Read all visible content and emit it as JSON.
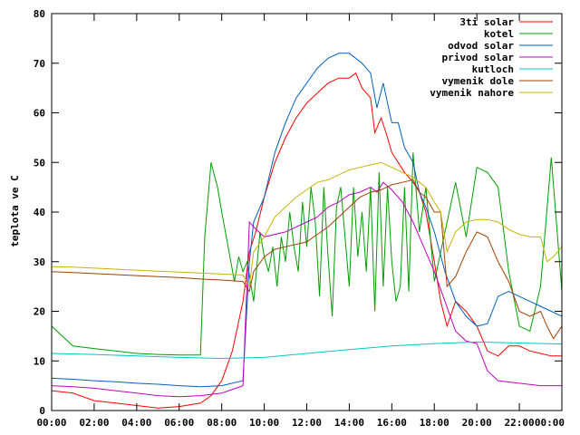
{
  "chart_data": {
    "type": "line",
    "title": "",
    "xlabel": "",
    "ylabel": "teplota ve C",
    "xlim": [
      0,
      24
    ],
    "ylim": [
      0,
      80
    ],
    "x_ticks": [
      0,
      2,
      4,
      6,
      8,
      10,
      12,
      14,
      16,
      18,
      20,
      22,
      24
    ],
    "x_tick_labels": [
      "00:00",
      "02:00",
      "04:00",
      "06:00",
      "08:00",
      "10:00",
      "12:00",
      "14:00",
      "16:00",
      "18:00",
      "20:00",
      "22:00",
      "00:00"
    ],
    "y_ticks": [
      0,
      10,
      20,
      30,
      40,
      50,
      60,
      70,
      80
    ],
    "y_tick_labels": [
      "0",
      "10",
      "20",
      "30",
      "40",
      "50",
      "60",
      "70",
      "80"
    ],
    "grid": false,
    "legend_position": "top-right",
    "series": [
      {
        "name": "3ti solar",
        "color": "#ff0000",
        "x": [
          0,
          1,
          2,
          3,
          4,
          5,
          6,
          7,
          7.5,
          8,
          8.5,
          9,
          9.3,
          9.6,
          10,
          10.5,
          11,
          11.5,
          12,
          12.5,
          13,
          13.5,
          14,
          14.3,
          14.6,
          15,
          15.2,
          15.5,
          15.8,
          16,
          16.3,
          16.6,
          17,
          17.3,
          17.6,
          18,
          18.3,
          18.6,
          19,
          19.5,
          20,
          20.5,
          21,
          21.5,
          22,
          22.5,
          23,
          23.5,
          24
        ],
        "y": [
          4,
          3.5,
          2,
          1.5,
          1,
          0.5,
          0.8,
          1.5,
          3,
          6,
          12,
          22,
          32,
          36,
          43,
          50,
          55,
          59,
          62,
          64,
          66,
          67,
          67,
          68,
          65,
          63,
          56,
          59,
          55,
          52,
          50,
          48,
          46,
          44,
          40,
          30,
          22,
          17,
          22,
          20,
          17,
          12,
          11,
          13,
          13,
          12,
          11.5,
          11,
          11
        ]
      },
      {
        "name": "kotel",
        "color": "#00a000",
        "x": [
          0,
          0.5,
          1,
          2,
          3,
          4,
          5,
          6,
          7,
          7.2,
          7.5,
          7.8,
          8,
          8.3,
          8.6,
          8.8,
          9,
          9.2,
          9.5,
          9.8,
          10,
          10.2,
          10.4,
          10.6,
          10.8,
          11,
          11.2,
          11.4,
          11.6,
          11.8,
          12,
          12.2,
          12.4,
          12.6,
          12.8,
          13,
          13.2,
          13.4,
          13.6,
          13.8,
          14,
          14.2,
          14.4,
          14.6,
          14.8,
          15,
          15.2,
          15.4,
          15.6,
          15.8,
          16,
          16.2,
          16.4,
          16.6,
          16.8,
          17,
          17.3,
          17.6,
          18,
          18.5,
          19,
          19.5,
          20,
          20.5,
          21,
          21.5,
          22,
          22.5,
          23,
          23.5,
          24
        ],
        "y": [
          17,
          15,
          13,
          12.5,
          12,
          11.5,
          11.3,
          11.2,
          11.2,
          35,
          50,
          45,
          40,
          33,
          26,
          31,
          28,
          30,
          22,
          36,
          31,
          28,
          33,
          25,
          35,
          30,
          40,
          33,
          28,
          42,
          33,
          45,
          38,
          23,
          45,
          31,
          19,
          41,
          45,
          35,
          25,
          45,
          31,
          40,
          28,
          45,
          20,
          48,
          25,
          45,
          30,
          22,
          25,
          45,
          24,
          52,
          36,
          45,
          26,
          36,
          46,
          35,
          49,
          48,
          45,
          28,
          17,
          16,
          25,
          51,
          24
        ]
      },
      {
        "name": "odvod solar",
        "color": "#0060c0",
        "x": [
          0,
          1,
          2,
          3,
          4,
          5,
          6,
          7,
          8,
          9,
          9.3,
          9.5,
          10,
          10.5,
          11,
          11.5,
          12,
          12.5,
          13,
          13.5,
          14,
          14.3,
          14.6,
          15,
          15.3,
          15.6,
          16,
          16.3,
          16.6,
          17,
          17.3,
          17.6,
          18,
          18.5,
          19,
          19.5,
          20,
          20.5,
          21,
          21.5,
          22,
          22.5,
          23,
          23.5,
          24
        ],
        "y": [
          6.5,
          6.3,
          6,
          5.8,
          5.5,
          5.3,
          5,
          4.8,
          5,
          6,
          30,
          38,
          43,
          52,
          58,
          63,
          66,
          69,
          71,
          72,
          72,
          71,
          70,
          68,
          61,
          66,
          58,
          58,
          53,
          50,
          44,
          41,
          36,
          28,
          22,
          19,
          17,
          17.5,
          23,
          24,
          23,
          22,
          21,
          20,
          19
        ]
      },
      {
        "name": "privod solar",
        "color": "#c000c0",
        "x": [
          0,
          1,
          2,
          3,
          4,
          5,
          6,
          7,
          8,
          9,
          9.3,
          9.5,
          10,
          10.5,
          11,
          11.5,
          12,
          12.5,
          13,
          13.5,
          14,
          14.5,
          15,
          15.3,
          15.6,
          16,
          16.5,
          17,
          17.5,
          18,
          18.5,
          19,
          19.5,
          20,
          20.5,
          21,
          22,
          23,
          24
        ],
        "y": [
          5,
          4.8,
          4.5,
          4,
          3.5,
          3,
          2.8,
          3,
          3.5,
          5,
          38,
          37,
          35,
          35.5,
          36,
          37,
          38,
          39,
          41,
          42,
          43.5,
          44,
          45,
          44,
          46,
          44.5,
          42,
          38,
          33,
          28,
          22,
          16,
          14,
          13.5,
          8,
          6,
          5.5,
          5,
          5
        ]
      },
      {
        "name": "kutloch",
        "color": "#00c8c8",
        "x": [
          0,
          2,
          4,
          6,
          8,
          10,
          12,
          14,
          16,
          18,
          20,
          22,
          24
        ],
        "y": [
          11.5,
          11.3,
          11,
          10.7,
          10.5,
          10.7,
          11.5,
          12.3,
          13,
          13.5,
          13.8,
          13.6,
          13.4
        ]
      },
      {
        "name": "vymenik dole",
        "color": "#a04000",
        "x": [
          0,
          1,
          2,
          3,
          4,
          5,
          6,
          7,
          8,
          9,
          9.3,
          9.5,
          10,
          10.5,
          11,
          11.5,
          12,
          12.5,
          13,
          13.5,
          14,
          14.5,
          15,
          15.5,
          16,
          16.5,
          17,
          17.3,
          17.6,
          18,
          18.3,
          18.6,
          19,
          19.5,
          20,
          20.5,
          21,
          21.5,
          22,
          22.5,
          23,
          23.3,
          23.6,
          24
        ],
        "y": [
          28,
          27.8,
          27.6,
          27.4,
          27.2,
          27,
          26.8,
          26.5,
          26.3,
          26,
          24,
          28,
          31,
          32.5,
          33,
          33.5,
          34,
          35.5,
          37,
          39,
          41,
          43,
          44,
          44.5,
          45.5,
          46,
          46.5,
          44,
          43,
          40,
          40,
          25,
          27,
          32,
          36,
          35,
          30,
          26,
          20,
          19,
          20,
          17,
          14.5,
          17
        ]
      },
      {
        "name": "vymenik nahore",
        "color": "#c8b400",
        "x": [
          0,
          1,
          2,
          3,
          4,
          5,
          6,
          7,
          8,
          9,
          9.3,
          9.5,
          10,
          10.5,
          11,
          11.5,
          12,
          12.5,
          13,
          13.5,
          14,
          14.5,
          15,
          15.5,
          16,
          16.5,
          17,
          17.3,
          17.6,
          18,
          18.3,
          18.6,
          19,
          19.5,
          20,
          20.5,
          21,
          21.5,
          22,
          22.5,
          23,
          23.3,
          23.6,
          24
        ],
        "y": [
          29,
          28.9,
          28.7,
          28.5,
          28.3,
          28.1,
          27.9,
          27.7,
          27.5,
          27.3,
          25,
          32,
          35,
          39,
          41,
          43,
          44.5,
          46,
          46.5,
          47.5,
          48.5,
          49,
          49.5,
          50,
          49,
          48,
          47,
          46,
          45,
          42,
          40,
          32,
          36,
          38,
          38.5,
          38.5,
          38,
          36.5,
          35.5,
          35,
          35,
          30,
          31,
          33
        ]
      }
    ]
  }
}
